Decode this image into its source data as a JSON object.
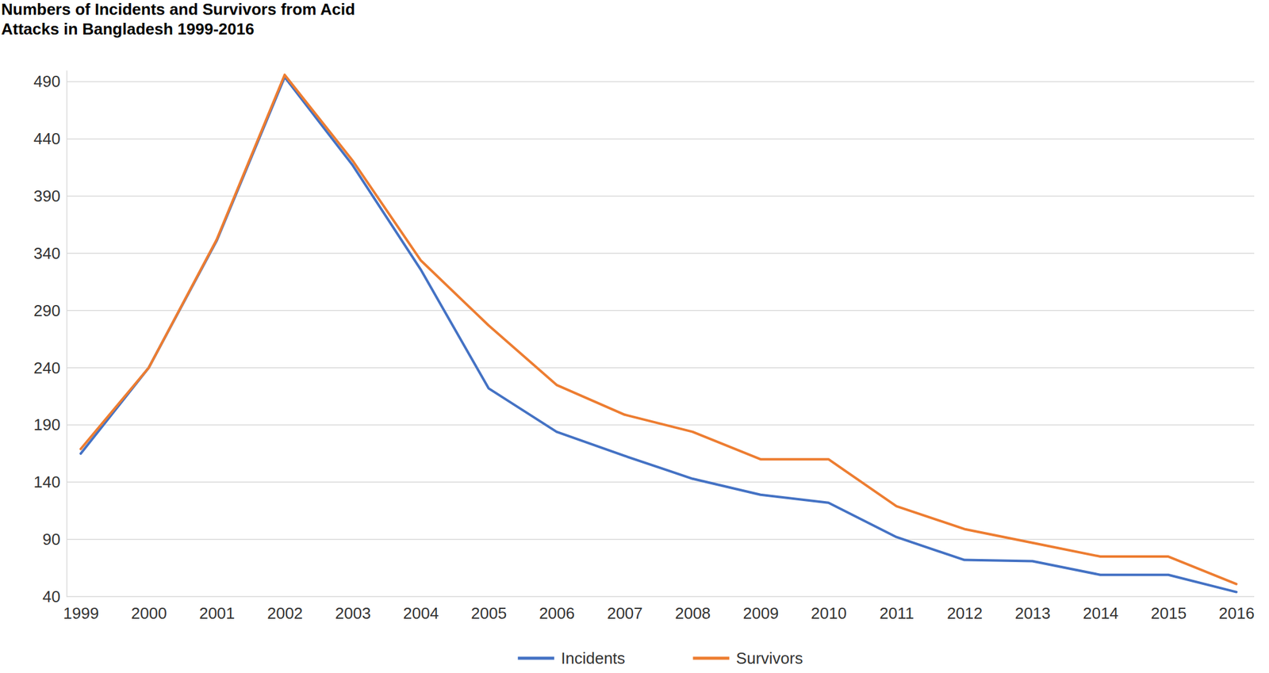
{
  "chart_data": {
    "type": "line",
    "title": "Numbers of Incidents and Survivors from Acid Attacks in Bangladesh 1999-2016",
    "categories": [
      "1999",
      "2000",
      "2001",
      "2002",
      "2003",
      "2004",
      "2005",
      "2006",
      "2007",
      "2008",
      "2009",
      "2010",
      "2011",
      "2012",
      "2013",
      "2014",
      "2015",
      "2016"
    ],
    "series": [
      {
        "name": "Incidents",
        "color": "#4472c4",
        "values": [
          165,
          240,
          351,
          494,
          417,
          326,
          222,
          184,
          163,
          143,
          129,
          122,
          92,
          72,
          71,
          59,
          59,
          44
        ]
      },
      {
        "name": "Survivors",
        "color": "#ed7d31",
        "values": [
          169,
          240,
          352,
          496,
          421,
          334,
          277,
          225,
          199,
          184,
          160,
          160,
          119,
          99,
          87,
          75,
          75,
          51
        ]
      }
    ],
    "ylim": [
      40,
      500
    ],
    "yticks": [
      40,
      90,
      140,
      190,
      240,
      290,
      340,
      390,
      440,
      490
    ],
    "grid": true,
    "legend": "bottom"
  }
}
